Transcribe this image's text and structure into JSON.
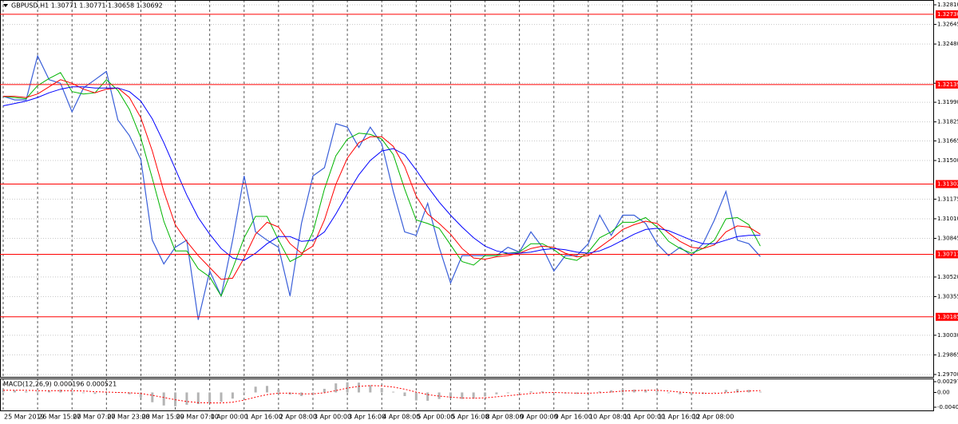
{
  "chart_data": [
    {
      "type": "line",
      "title": "GBPUSD,H1  1.30771 1.30771 1.30658 1.30692",
      "ylim": [
        1.297,
        1.3281
      ],
      "yticks": [
        {
          "value": 1.3281,
          "label": "1.32810"
        },
        1.32645,
        {
          "value": 1.3248,
          "label": "1.32480"
        },
        {
          "value": 1.3215,
          "label": "1.32150"
        },
        {
          "value": 1.3199,
          "label": "1.31990"
        },
        1.31825,
        1.31665,
        {
          "value": 1.315,
          "label": "1.31500"
        },
        1.31175,
        {
          "value": 1.3101,
          "label": "1.31010"
        },
        1.30845,
        {
          "value": 1.3052,
          "label": "1.30520"
        },
        1.30355,
        {
          "value": 1.3003,
          "label": "1.30030"
        },
        1.29865,
        {
          "value": 1.297,
          "label": "1.29700"
        }
      ],
      "hlines": [
        {
          "value": 1.3273,
          "label": "1.32730"
        },
        {
          "value": 1.32139,
          "label": "1.32139"
        },
        {
          "value": 1.31302,
          "label": "1.31302"
        },
        {
          "value": 1.30711,
          "label": "1.30711"
        },
        {
          "value": 1.30185,
          "label": "1.30185"
        }
      ],
      "hline_color": "#ff0000",
      "grid": true,
      "series": [
        {
          "color": "#3a5fd9",
          "values": [
            1.3204,
            1.3201,
            1.3201,
            1.3238,
            1.3218,
            1.3215,
            1.3191,
            1.3211,
            1.3218,
            1.3225,
            1.3184,
            1.3171,
            1.3151,
            1.3083,
            1.3063,
            1.3077,
            1.3083,
            1.3016,
            1.3057,
            1.3036,
            1.3083,
            1.3137,
            1.309,
            1.3083,
            1.3077,
            1.3036,
            1.3097,
            1.3137,
            1.3144,
            1.3181,
            1.3178,
            1.3161,
            1.3178,
            1.3164,
            1.3124,
            1.309,
            1.3087,
            1.3114,
            1.3077,
            1.3047,
            1.307,
            1.307,
            1.307,
            1.307,
            1.3077,
            1.3073,
            1.309,
            1.3077,
            1.3057,
            1.307,
            1.307,
            1.308,
            1.3104,
            1.3087,
            1.3104,
            1.3104,
            1.3097,
            1.308,
            1.307,
            1.3077,
            1.307,
            1.308,
            1.31,
            1.3124,
            1.3083,
            1.308,
            1.30692
          ]
        },
        {
          "color": "#00b400",
          "values": [
            1.3204,
            1.3203,
            1.3202,
            1.3213,
            1.3219,
            1.3224,
            1.3208,
            1.3206,
            1.3207,
            1.3218,
            1.3209,
            1.3193,
            1.3169,
            1.3135,
            1.3099,
            1.3074,
            1.3074,
            1.3059,
            1.3052,
            1.3036,
            1.3059,
            1.3085,
            1.3103,
            1.3103,
            1.3083,
            1.3065,
            1.307,
            1.309,
            1.3126,
            1.3154,
            1.3168,
            1.3173,
            1.3172,
            1.3168,
            1.3155,
            1.3126,
            1.31,
            1.3097,
            1.3093,
            1.3079,
            1.3065,
            1.3062,
            1.307,
            1.307,
            1.3072,
            1.3073,
            1.308,
            1.308,
            1.3075,
            1.3068,
            1.3066,
            1.3073,
            1.3085,
            1.309,
            1.3098,
            1.3098,
            1.3102,
            1.3094,
            1.3082,
            1.3076,
            1.3072,
            1.3076,
            1.3083,
            1.3101,
            1.3102,
            1.3096,
            1.3078
          ]
        },
        {
          "color": "#ff0000",
          "values": [
            1.3204,
            1.3204,
            1.3203,
            1.3206,
            1.3212,
            1.3218,
            1.3215,
            1.321,
            1.3207,
            1.321,
            1.3211,
            1.3203,
            1.3186,
            1.3158,
            1.3124,
            1.3096,
            1.3082,
            1.307,
            1.306,
            1.305,
            1.3051,
            1.3068,
            1.3088,
            1.3098,
            1.3094,
            1.308,
            1.3072,
            1.3078,
            1.31,
            1.313,
            1.3152,
            1.3165,
            1.317,
            1.317,
            1.3162,
            1.3145,
            1.312,
            1.3105,
            1.3097,
            1.3088,
            1.3076,
            1.3068,
            1.3067,
            1.3069,
            1.307,
            1.3072,
            1.3076,
            1.3078,
            1.3077,
            1.3072,
            1.3069,
            1.307,
            1.3077,
            1.3084,
            1.3092,
            1.3096,
            1.3099,
            1.3097,
            1.3089,
            1.3082,
            1.3077,
            1.3076,
            1.3079,
            1.309,
            1.3095,
            1.3094,
            1.3088
          ]
        },
        {
          "color": "#0000ff",
          "values": [
            1.3196,
            1.3198,
            1.32,
            1.3203,
            1.3207,
            1.321,
            1.3212,
            1.3212,
            1.3211,
            1.3211,
            1.3211,
            1.3208,
            1.32,
            1.3185,
            1.3165,
            1.3143,
            1.3121,
            1.3102,
            1.3088,
            1.3076,
            1.3068,
            1.3066,
            1.3072,
            1.308,
            1.3086,
            1.3086,
            1.3082,
            1.3083,
            1.309,
            1.3105,
            1.3122,
            1.3138,
            1.315,
            1.3158,
            1.316,
            1.3155,
            1.3142,
            1.3128,
            1.3115,
            1.3104,
            1.3094,
            1.3085,
            1.3078,
            1.3074,
            1.3072,
            1.3072,
            1.3073,
            1.3075,
            1.3076,
            1.3075,
            1.3073,
            1.3072,
            1.3074,
            1.3078,
            1.3083,
            1.3088,
            1.3092,
            1.3093,
            1.3091,
            1.3087,
            1.3083,
            1.308,
            1.308,
            1.3083,
            1.3086,
            1.3087,
            1.3087
          ]
        }
      ]
    },
    {
      "type": "bar",
      "title": "MACD(12,26,9) 0.000196 0.000521",
      "categories": [
        "25 Mar 2019",
        null,
        null,
        "26 Mar 15:00",
        null,
        null,
        "27 Mar 07:00",
        null,
        null,
        "27 Mar 23:00",
        null,
        null,
        "28 Mar 15:00",
        null,
        null,
        "29 Mar 07:00",
        null,
        null,
        "1 Apr 00:00",
        null,
        null,
        "1 Apr 16:00",
        null,
        null,
        "2 Apr 08:00",
        null,
        null,
        "3 Apr 00:00",
        null,
        null,
        "3 Apr 16:00",
        null,
        null,
        "4 Apr 08:00",
        null,
        null,
        "5 Apr 00:00",
        null,
        null,
        "5 Apr 16:00",
        null,
        null,
        "8 Apr 08:00",
        null,
        null,
        "9 Apr 00:00",
        null,
        null,
        "9 Apr 16:00",
        null,
        null,
        "10 Apr 08:00",
        null,
        null,
        "11 Apr 00:00",
        null,
        null,
        "11 Apr 16:00",
        null,
        null,
        "12 Apr 08:00",
        null,
        null,
        null,
        null,
        null,
        null
      ],
      "color": "#b4b4b4",
      "values": [
        0.0008,
        0.0006,
        0.0003,
        0.0003,
        0.0005,
        0.0008,
        0.0003,
        -0.0002,
        -0.0004,
        -0.0001,
        0,
        -0.0005,
        -0.0014,
        -0.0027,
        -0.0036,
        -0.0038,
        -0.0034,
        -0.0032,
        -0.0028,
        -0.0026,
        -0.0017,
        0.0002,
        0.0016,
        0.0018,
        0.0008,
        -0.0006,
        -0.001,
        -0.0005,
        0.001,
        0.0025,
        0.0028,
        0.0027,
        0.002,
        0.0012,
        0.0002,
        -0.001,
        -0.0022,
        -0.0023,
        -0.0018,
        -0.0016,
        -0.0018,
        -0.0017,
        -0.0011,
        -0.0005,
        -0.0002,
        0,
        0.0003,
        0.0003,
        0.0001,
        -0.0003,
        -0.0004,
        -0.0002,
        0.0003,
        0.0006,
        0.0009,
        0.0008,
        0.0007,
        0.0004,
        -0.0002,
        -0.0005,
        -0.0006,
        -0.0004,
        -0.0001,
        0.0007,
        0.0009,
        0.0007,
        0.000196
      ],
      "signal": {
        "color": "#ff0000",
        "values": [
          0.0006,
          0.0006,
          0.0006,
          0.0005,
          0.0005,
          0.0005,
          0.0005,
          0.0004,
          0.0002,
          0.0001,
          0,
          -0.0001,
          -0.0003,
          -0.0008,
          -0.0014,
          -0.002,
          -0.0025,
          -0.0028,
          -0.0029,
          -0.0029,
          -0.0027,
          -0.0021,
          -0.0013,
          -0.0006,
          -0.0002,
          -0.0002,
          -0.0004,
          -0.0004,
          -0.0001,
          0.0005,
          0.0012,
          0.0017,
          0.0019,
          0.0018,
          0.0015,
          0.0009,
          0.0001,
          -0.0006,
          -0.001,
          -0.0013,
          -0.0015,
          -0.0016,
          -0.0015,
          -0.0012,
          -0.0009,
          -0.0006,
          -0.0003,
          -0.0001,
          0,
          -0.0001,
          -0.0002,
          -0.0002,
          -0.0001,
          0.0001,
          0.0004,
          0.0005,
          0.0006,
          0.0006,
          0.0004,
          0.0001,
          -0.0001,
          -0.0002,
          -0.0003,
          -0.0001,
          0.0002,
          0.0004,
          0.000521
        ]
      },
      "ylim": [
        -0.00408,
        0.00297
      ],
      "yticks": [
        0.00297,
        {
          "value": 0,
          "label": "0.00"
        },
        -0.00408
      ]
    }
  ]
}
